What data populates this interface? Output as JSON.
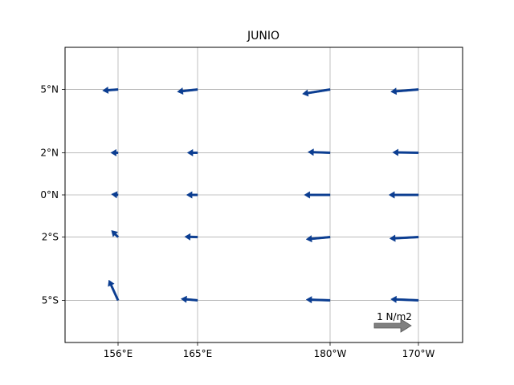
{
  "chart_data": {
    "type": "quiver",
    "title": "JUNIO",
    "xlabel": "",
    "ylabel": "",
    "x_tick_labels": [
      "156°E",
      "165°E",
      "180°W",
      "170°W"
    ],
    "y_tick_labels": [
      "5°N",
      "2°N",
      "0°N",
      "2°S",
      "5°S"
    ],
    "x_ticks_lon": [
      156,
      165,
      180,
      190
    ],
    "y_ticks_lat": [
      5,
      2,
      0,
      -2,
      -5
    ],
    "xlim": [
      150,
      195
    ],
    "ylim": [
      -7,
      7
    ],
    "grid": true,
    "colors": {
      "arrow": "#0b3d91",
      "reference_arrow": "#808080",
      "grid": "#b0b0b0"
    },
    "reference_vector": {
      "label": "1 N/m2",
      "u": 1.0,
      "v": 0.0
    },
    "vectors": [
      {
        "lon": 156,
        "lat": 5,
        "u": -0.42,
        "v": -0.03
      },
      {
        "lon": 165,
        "lat": 5,
        "u": -0.55,
        "v": -0.06
      },
      {
        "lon": 180,
        "lat": 5,
        "u": -0.75,
        "v": -0.12
      },
      {
        "lon": 190,
        "lat": 5,
        "u": -0.75,
        "v": -0.06
      },
      {
        "lon": 156,
        "lat": 2,
        "u": -0.2,
        "v": 0.0
      },
      {
        "lon": 165,
        "lat": 2,
        "u": -0.28,
        "v": 0.0
      },
      {
        "lon": 180,
        "lat": 2,
        "u": -0.6,
        "v": 0.02
      },
      {
        "lon": 190,
        "lat": 2,
        "u": -0.7,
        "v": 0.01
      },
      {
        "lon": 156,
        "lat": 0,
        "u": -0.18,
        "v": 0.02
      },
      {
        "lon": 165,
        "lat": 0,
        "u": -0.3,
        "v": 0.0
      },
      {
        "lon": 180,
        "lat": 0,
        "u": -0.7,
        "v": 0.0
      },
      {
        "lon": 190,
        "lat": 0,
        "u": -0.8,
        "v": 0.0
      },
      {
        "lon": 156,
        "lat": -2,
        "u": -0.18,
        "v": 0.18
      },
      {
        "lon": 165,
        "lat": -2,
        "u": -0.35,
        "v": 0.01
      },
      {
        "lon": 180,
        "lat": -2,
        "u": -0.65,
        "v": -0.06
      },
      {
        "lon": 190,
        "lat": -2,
        "u": -0.78,
        "v": -0.04
      },
      {
        "lon": 156,
        "lat": -5,
        "u": -0.25,
        "v": 0.55
      },
      {
        "lon": 165,
        "lat": -5,
        "u": -0.45,
        "v": 0.04
      },
      {
        "lon": 180,
        "lat": -5,
        "u": -0.65,
        "v": 0.02
      },
      {
        "lon": 190,
        "lat": -5,
        "u": -0.75,
        "v": 0.03
      }
    ]
  }
}
